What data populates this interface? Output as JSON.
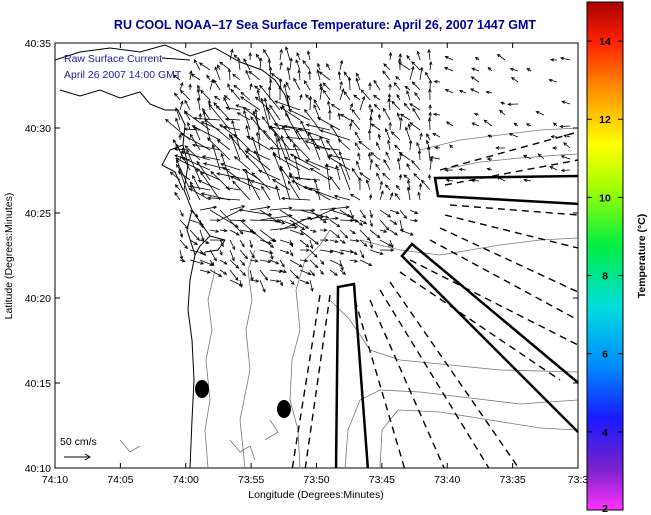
{
  "figure": {
    "title": "RU COOL  NOAA–17  Sea Surface Temperature:  April 26, 2007 1447 GMT",
    "xlabel": "Longitude (Degrees:Minutes)",
    "ylabel": "Latitude (Degrees:Minutes)",
    "x_ticks": [
      "74:10",
      "74:05",
      "74:00",
      "73:55",
      "73:50",
      "73:45",
      "73:40",
      "73:35",
      "73:3"
    ],
    "y_ticks": [
      "40:35",
      "40:30",
      "40:25",
      "40:20",
      "40:15",
      "40:10"
    ],
    "legend_line1": "Raw Surface Current",
    "legend_line2": "April 26 2007 14:00 GMT",
    "scale_label": "50 cm/s",
    "title_color": "#000099",
    "legend_color": "#1a1aa0"
  },
  "colorbar": {
    "label": "Temperature (°C)",
    "ticks": [
      "14",
      "12",
      "10",
      "8",
      "6",
      "4",
      "2"
    ],
    "min": 2,
    "max": 15
  }
}
